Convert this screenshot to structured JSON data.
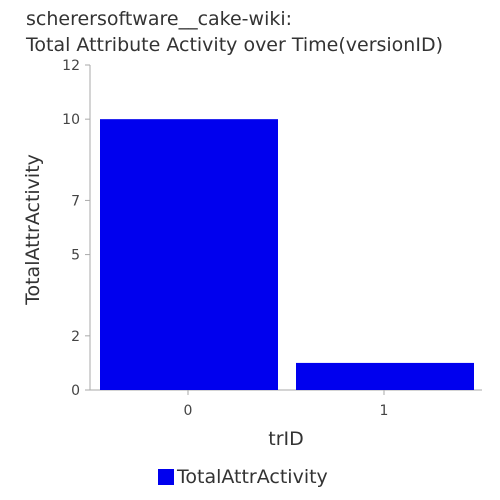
{
  "title_lines": [
    "scherersoftware__cake-wiki:",
    "Total Attribute Activity over Time(versionID)"
  ],
  "chart_data": {
    "type": "bar",
    "title": "scherersoftware__cake-wiki: Total Attribute Activity over Time(versionID)",
    "categories": [
      "0",
      "1"
    ],
    "series": [
      {
        "name": "TotalAttrActivity",
        "values": [
          10,
          1
        ],
        "color": "#0000ee"
      }
    ],
    "xlabel": "trID",
    "ylabel": "TotalAttrActivity",
    "ylim": [
      0,
      12
    ],
    "yticks": [
      0,
      2,
      5,
      7,
      10,
      12
    ],
    "grid": false,
    "legend": "bottom-center"
  }
}
